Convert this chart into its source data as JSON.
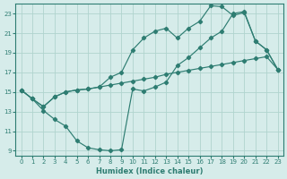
{
  "xlabel": "Humidex (Indice chaleur)",
  "bg_color": "#d6ecea",
  "grid_color": "#b0d4ce",
  "line_color": "#2e7d72",
  "xlim": [
    -0.5,
    23.5
  ],
  "ylim": [
    8.5,
    24.0
  ],
  "xticks": [
    0,
    1,
    2,
    3,
    4,
    5,
    6,
    7,
    8,
    9,
    10,
    11,
    12,
    13,
    14,
    15,
    16,
    17,
    18,
    19,
    20,
    21,
    22,
    23
  ],
  "yticks": [
    9,
    11,
    13,
    15,
    17,
    19,
    21,
    23
  ],
  "line1_x": [
    0,
    1,
    2,
    3,
    4,
    5,
    6,
    7,
    8,
    9,
    10,
    11,
    12,
    13,
    14,
    15,
    16,
    17,
    18,
    19,
    20,
    21,
    22,
    23
  ],
  "line1_y": [
    15.2,
    14.3,
    13.1,
    12.2,
    11.5,
    10.0,
    9.3,
    9.1,
    9.0,
    9.1,
    15.3,
    15.1,
    15.5,
    16.0,
    17.7,
    18.5,
    19.5,
    20.5,
    21.2,
    23.0,
    23.2,
    20.2,
    19.3,
    17.3
  ],
  "line2_x": [
    0,
    1,
    2,
    3,
    4,
    5,
    6,
    7,
    8,
    9,
    10,
    11,
    12,
    13,
    14,
    15,
    16,
    17,
    18,
    19,
    20,
    21,
    22,
    23
  ],
  "line2_y": [
    15.2,
    14.3,
    13.5,
    14.5,
    15.0,
    15.2,
    15.3,
    15.5,
    16.5,
    17.0,
    19.3,
    20.5,
    21.2,
    21.5,
    20.5,
    21.5,
    22.2,
    23.8,
    23.7,
    22.8,
    23.1,
    20.2,
    19.3,
    17.3
  ],
  "line3_x": [
    0,
    1,
    2,
    3,
    4,
    5,
    6,
    7,
    8,
    9,
    10,
    11,
    12,
    13,
    14,
    15,
    16,
    17,
    18,
    19,
    20,
    21,
    22,
    23
  ],
  "line3_y": [
    15.2,
    14.3,
    13.5,
    14.5,
    15.0,
    15.2,
    15.3,
    15.5,
    15.7,
    15.9,
    16.1,
    16.3,
    16.5,
    16.8,
    17.0,
    17.2,
    17.4,
    17.6,
    17.8,
    18.0,
    18.2,
    18.4,
    18.6,
    17.3
  ]
}
